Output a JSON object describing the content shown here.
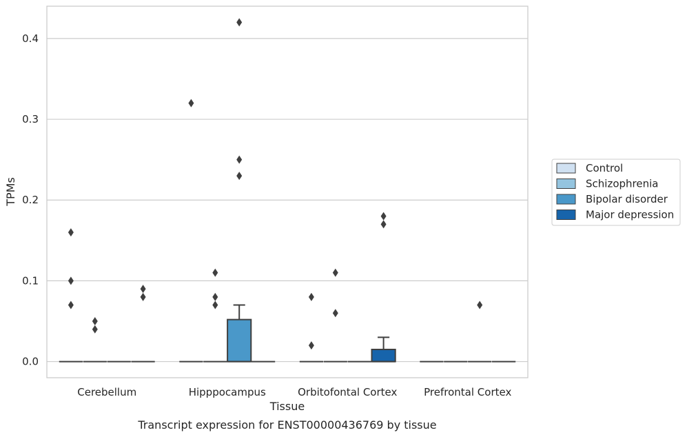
{
  "chart_data": {
    "type": "box",
    "title": "",
    "caption": "Transcript expression for ENST00000436769 by tissue",
    "xlabel": "Tissue",
    "ylabel": "TPMs",
    "categories": [
      "Cerebellum",
      "Hipppocampus",
      "Orbitofontal Cortex",
      "Prefrontal Cortex"
    ],
    "ylim": [
      -0.02,
      0.44
    ],
    "yticks": [
      0.0,
      0.1,
      0.2,
      0.3,
      0.4
    ],
    "ytick_labels": [
      "0.0",
      "0.1",
      "0.2",
      "0.3",
      "0.4"
    ],
    "grid": true,
    "legend_position": "right",
    "series": [
      {
        "name": "Control",
        "color": "#d0e1f2"
      },
      {
        "name": "Schizophrenia",
        "color": "#94c4df"
      },
      {
        "name": "Bipolar disorder",
        "color": "#4a98c9"
      },
      {
        "name": "Major depression",
        "color": "#1764ab"
      }
    ],
    "boxes": [
      {
        "category": "Cerebellum",
        "series": "Control",
        "q1": 0,
        "median": 0,
        "q3": 0,
        "whisker_low": 0,
        "whisker_high": 0,
        "outliers": [
          0.16,
          0.1,
          0.07
        ]
      },
      {
        "category": "Cerebellum",
        "series": "Schizophrenia",
        "q1": 0,
        "median": 0,
        "q3": 0,
        "whisker_low": 0,
        "whisker_high": 0,
        "outliers": [
          0.05,
          0.04
        ]
      },
      {
        "category": "Cerebellum",
        "series": "Bipolar disorder",
        "q1": 0,
        "median": 0,
        "q3": 0,
        "whisker_low": 0,
        "whisker_high": 0,
        "outliers": []
      },
      {
        "category": "Cerebellum",
        "series": "Major depression",
        "q1": 0,
        "median": 0,
        "q3": 0,
        "whisker_low": 0,
        "whisker_high": 0,
        "outliers": [
          0.09,
          0.08
        ]
      },
      {
        "category": "Hipppocampus",
        "series": "Control",
        "q1": 0,
        "median": 0,
        "q3": 0,
        "whisker_low": 0,
        "whisker_high": 0,
        "outliers": [
          0.32
        ]
      },
      {
        "category": "Hipppocampus",
        "series": "Schizophrenia",
        "q1": 0,
        "median": 0,
        "q3": 0,
        "whisker_low": 0,
        "whisker_high": 0,
        "outliers": [
          0.11,
          0.08,
          0.07
        ]
      },
      {
        "category": "Hipppocampus",
        "series": "Bipolar disorder",
        "q1": 0,
        "median": 0,
        "q3": 0.052,
        "whisker_low": 0,
        "whisker_high": 0.07,
        "outliers": [
          0.42,
          0.25,
          0.23
        ]
      },
      {
        "category": "Hipppocampus",
        "series": "Major depression",
        "q1": 0,
        "median": 0,
        "q3": 0,
        "whisker_low": 0,
        "whisker_high": 0,
        "outliers": []
      },
      {
        "category": "Orbitofontal Cortex",
        "series": "Control",
        "q1": 0,
        "median": 0,
        "q3": 0,
        "whisker_low": 0,
        "whisker_high": 0,
        "outliers": [
          0.08,
          0.02
        ]
      },
      {
        "category": "Orbitofontal Cortex",
        "series": "Schizophrenia",
        "q1": 0,
        "median": 0,
        "q3": 0,
        "whisker_low": 0,
        "whisker_high": 0,
        "outliers": [
          0.11,
          0.06
        ]
      },
      {
        "category": "Orbitofontal Cortex",
        "series": "Bipolar disorder",
        "q1": 0,
        "median": 0,
        "q3": 0,
        "whisker_low": 0,
        "whisker_high": 0,
        "outliers": []
      },
      {
        "category": "Orbitofontal Cortex",
        "series": "Major depression",
        "q1": 0,
        "median": 0,
        "q3": 0.015,
        "whisker_low": 0,
        "whisker_high": 0.03,
        "outliers": [
          0.18,
          0.17
        ]
      },
      {
        "category": "Prefrontal Cortex",
        "series": "Control",
        "q1": 0,
        "median": 0,
        "q3": 0,
        "whisker_low": 0,
        "whisker_high": 0,
        "outliers": []
      },
      {
        "category": "Prefrontal Cortex",
        "series": "Schizophrenia",
        "q1": 0,
        "median": 0,
        "q3": 0,
        "whisker_low": 0,
        "whisker_high": 0,
        "outliers": []
      },
      {
        "category": "Prefrontal Cortex",
        "series": "Bipolar disorder",
        "q1": 0,
        "median": 0,
        "q3": 0,
        "whisker_low": 0,
        "whisker_high": 0,
        "outliers": [
          0.07
        ]
      },
      {
        "category": "Prefrontal Cortex",
        "series": "Major depression",
        "q1": 0,
        "median": 0,
        "q3": 0,
        "whisker_low": 0,
        "whisker_high": 0,
        "outliers": []
      }
    ]
  }
}
